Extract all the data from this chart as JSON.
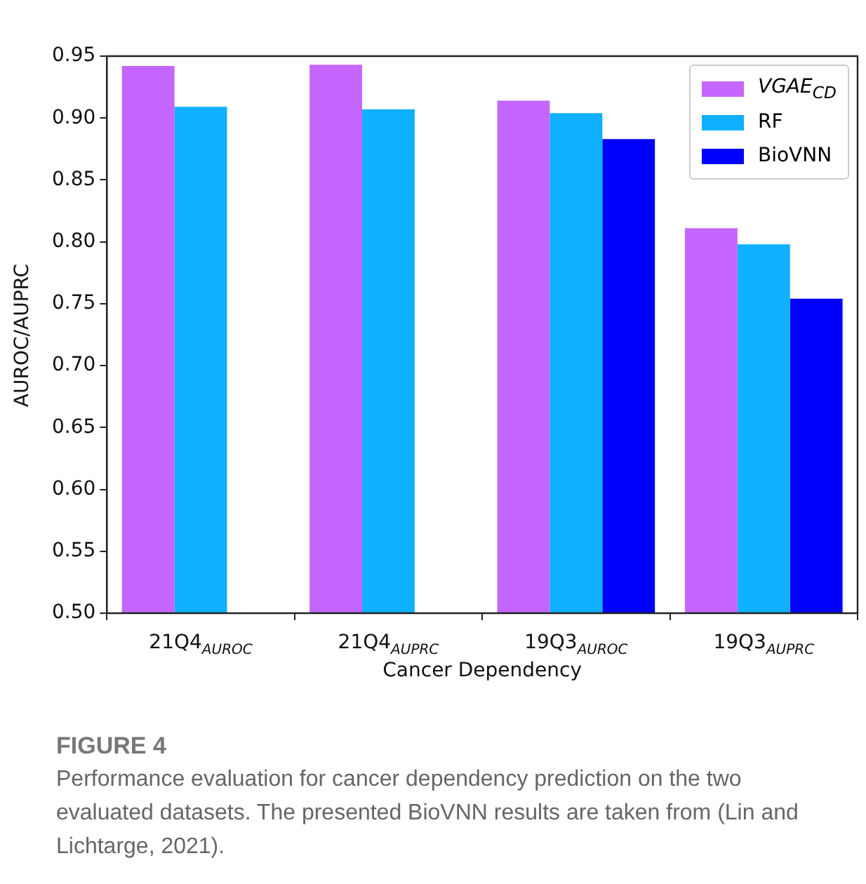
{
  "chart_data": {
    "type": "bar",
    "xlabel": "Cancer Dependency",
    "ylabel": "AUROC/AUPRC",
    "categories": [
      "21Q4$_{AUROC}$",
      "21Q4$_{AUPRC}$",
      "19Q3$_{AUROC}$",
      "19Q3$_{AUPRC}$"
    ],
    "series": [
      {
        "name": "VGAE$_{CD}$",
        "color": "#c466ff",
        "values": [
          0.942,
          0.943,
          0.914,
          0.811
        ]
      },
      {
        "name": "RF",
        "color": "#0fb0ff",
        "values": [
          0.909,
          0.907,
          0.904,
          0.798
        ]
      },
      {
        "name": "BioVNN",
        "color": "#0000ff",
        "values": [
          null,
          null,
          0.883,
          0.754
        ]
      }
    ],
    "ylim": [
      0.5,
      0.95
    ],
    "yticks": [
      {
        "value": 0.5,
        "label": "0.50"
      },
      {
        "value": 0.55,
        "label": "0.55"
      },
      {
        "value": 0.6,
        "label": "0.60"
      },
      {
        "value": 0.65,
        "label": "0.65"
      },
      {
        "value": 0.7,
        "label": "0.70"
      },
      {
        "value": 0.75,
        "label": "0.75"
      },
      {
        "value": 0.8,
        "label": "0.80"
      },
      {
        "value": 0.85,
        "label": "0.85"
      },
      {
        "value": 0.9,
        "label": "0.90"
      },
      {
        "value": 0.95,
        "label": "0.95"
      }
    ],
    "grid": false,
    "legend": "top right",
    "annotations": [
      "FIGURE 4",
      "Performance evaluation for cancer dependency prediction on the two evaluated datasets. The presented BioVNN results are taken from (Lin and Lichtarge, 2021)."
    ]
  }
}
